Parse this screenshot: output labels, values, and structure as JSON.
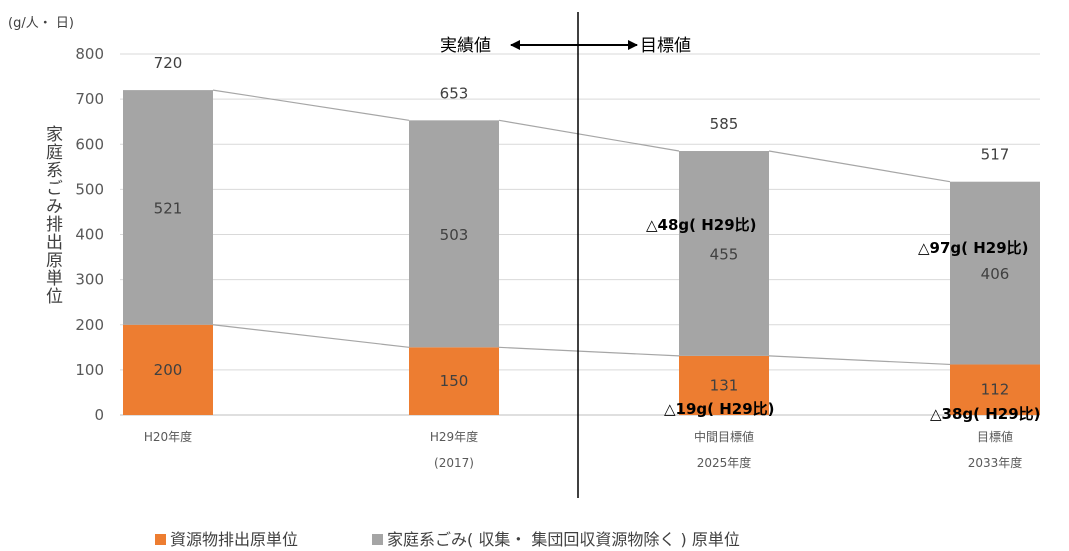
{
  "chart_data": {
    "type": "bar",
    "stacked": true,
    "unit_label": "(g/人・ 日)",
    "ylabel": "家庭系ごみ排出原単位",
    "ylim": [
      0,
      800
    ],
    "yticks": [
      0,
      100,
      200,
      300,
      400,
      500,
      600,
      700,
      800
    ],
    "grid": true,
    "categories": [
      [
        "H20年度"
      ],
      [
        "H29年度",
        "(2017)"
      ],
      [
        "中間目標値",
        "2025年度"
      ],
      [
        "目標値",
        "2033年度"
      ]
    ],
    "series": [
      {
        "name": "資源物排出原単位",
        "color": "#ed7d31",
        "values": [
          200,
          150,
          131,
          112
        ]
      },
      {
        "name": "家庭系ごみ( 収集・ 集団回収資源物除く ) 原単位",
        "color": "#a5a5a5",
        "values": [
          521,
          503,
          455,
          406
        ]
      }
    ],
    "totals": [
      720,
      653,
      585,
      517
    ],
    "divider_labels": {
      "left": "実績値",
      "right": "目標値"
    },
    "annotations": [
      "△48g( H29比)",
      "△97g( H29比)",
      "△19g( H29比)",
      "△38g( H29比)"
    ],
    "legend_position": "bottom"
  }
}
